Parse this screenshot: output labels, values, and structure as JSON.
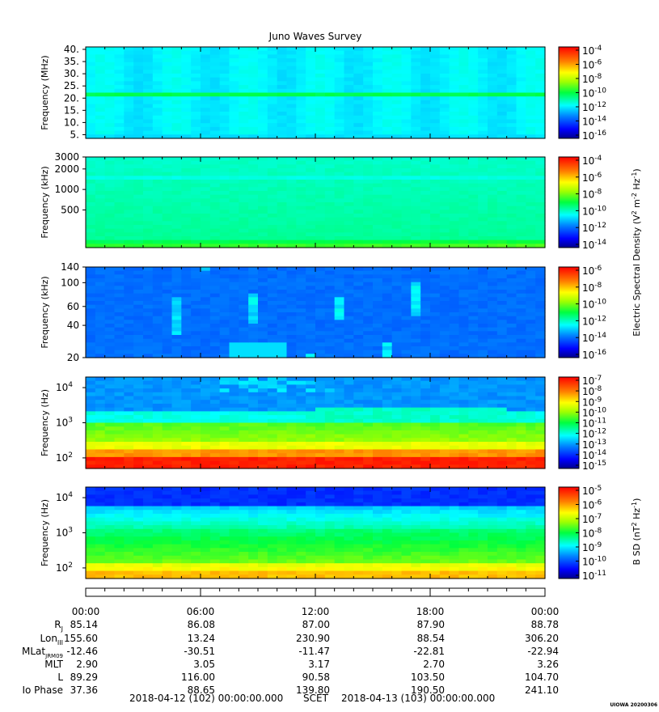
{
  "chart_data": {
    "type": "heatmap",
    "title": "Juno Waves Survey",
    "time_axis": {
      "tick_labels": [
        "00:00",
        "06:00",
        "12:00",
        "18:00",
        "00:00"
      ],
      "hours": [
        0,
        6,
        12,
        18,
        24
      ],
      "range_hours": [
        0,
        24
      ],
      "minor_every_hours": 1
    },
    "panels": [
      {
        "id": "p1",
        "ylabel": "Frequency (MHz)",
        "yscale": "linear",
        "ylim": [
          3.5,
          41
        ],
        "yticks": [
          5,
          10,
          15,
          20,
          25,
          30,
          35,
          40
        ],
        "ytick_labels": [
          "5.",
          "10.",
          "15.",
          "20.",
          "25.",
          "30.",
          "35.",
          "40."
        ],
        "style": "hfwbr",
        "colorbar": {
          "labels": [
            "10-4",
            "10-6",
            "10-8",
            "10-10",
            "10-12",
            "10-14",
            "10-16"
          ],
          "exps": [
            "-4",
            "-6",
            "-8",
            "-10",
            "-12",
            "-14",
            "-16"
          ]
        }
      },
      {
        "id": "p2",
        "ylabel": "Frequency (kHz)",
        "yscale": "log",
        "ylim": [
          140,
          3000
        ],
        "yticks": [
          500,
          1000,
          2000,
          3000
        ],
        "ytick_labels": [
          "500",
          "1000",
          "2000",
          "3000"
        ],
        "style": "hfwbr_khz",
        "colorbar": {
          "labels": [
            "10-4",
            "10-6",
            "10-8",
            "10-10",
            "10-12",
            "10-14"
          ],
          "exps": [
            "-4",
            "-6",
            "-8",
            "-10",
            "-12",
            "-14"
          ]
        }
      },
      {
        "id": "p3",
        "ylabel": "Frequency (kHz)",
        "yscale": "log",
        "ylim": [
          20,
          140
        ],
        "yticks": [
          20,
          40,
          60,
          100,
          140
        ],
        "ytick_labels": [
          "20",
          "40",
          "60",
          "100",
          "140"
        ],
        "style": "lfr",
        "colorbar": {
          "labels": [
            "10-6",
            "10-8",
            "10-10",
            "10-12",
            "10-14",
            "10-16"
          ],
          "exps": [
            "-6",
            "-8",
            "-10",
            "-12",
            "-14",
            "-16"
          ]
        }
      },
      {
        "id": "p4",
        "ylabel": "Frequency (Hz)",
        "yscale": "log",
        "ylim": [
          50,
          20000
        ],
        "yticks": [
          100,
          1000,
          10000
        ],
        "ytick_labels": [
          "10",
          "10",
          "10"
        ],
        "ytick_exps": [
          "2",
          "3",
          "4"
        ],
        "style": "efield_lf",
        "colorbar": {
          "labels": [
            "10-7",
            "10-8",
            "10-9",
            "10-10",
            "10-11",
            "10-12",
            "10-13",
            "10-14",
            "10-15"
          ],
          "exps": [
            "-7",
            "-8",
            "-9",
            "-10",
            "-11",
            "-12",
            "-13",
            "-14",
            "-15"
          ]
        }
      },
      {
        "id": "p5",
        "ylabel": "Frequency (Hz)",
        "yscale": "log",
        "ylim": [
          50,
          20000
        ],
        "yticks": [
          100,
          1000,
          10000
        ],
        "ytick_labels": [
          "10",
          "10",
          "10"
        ],
        "ytick_exps": [
          "2",
          "3",
          "4"
        ],
        "style": "bfield",
        "colorbar": {
          "labels": [
            "10-5",
            "10-6",
            "10-7",
            "10-8",
            "10-9",
            "10-10",
            "10-11"
          ],
          "exps": [
            "-5",
            "-6",
            "-7",
            "-8",
            "-9",
            "-10",
            "-11"
          ]
        }
      }
    ],
    "colorbar_titles": {
      "electric": "Electric Spectral Density (V2 m-2 Hz-1)",
      "magnetic": "B SD (nT2 Hz-1)"
    },
    "ephemeris": {
      "rows": [
        {
          "label": "RJ",
          "values": [
            "85.14",
            "86.08",
            "87.00",
            "87.90",
            "88.78"
          ]
        },
        {
          "label": "LonIII",
          "values": [
            "155.60",
            "13.24",
            "230.90",
            "88.54",
            "306.20"
          ]
        },
        {
          "label": "MLatJRM09",
          "values": [
            "-12.46",
            "-30.51",
            "-11.47",
            "-22.81",
            "-22.94"
          ]
        },
        {
          "label": "MLT",
          "values": [
            "2.90",
            "3.05",
            "3.17",
            "2.70",
            "3.26"
          ]
        },
        {
          "label": "L",
          "values": [
            "89.29",
            "116.00",
            "90.58",
            "103.50",
            "104.70"
          ]
        },
        {
          "label": "Io Phase",
          "values": [
            "37.36",
            "88.65",
            "139.80",
            "190.50",
            "241.10"
          ]
        }
      ]
    },
    "footer": {
      "start": "2018-04-12 (102) 00:00:00.000",
      "scet": "SCET",
      "end": "2018-04-13 (103) 00:00:00.000",
      "stamp": "UIOWA 20200306"
    }
  }
}
